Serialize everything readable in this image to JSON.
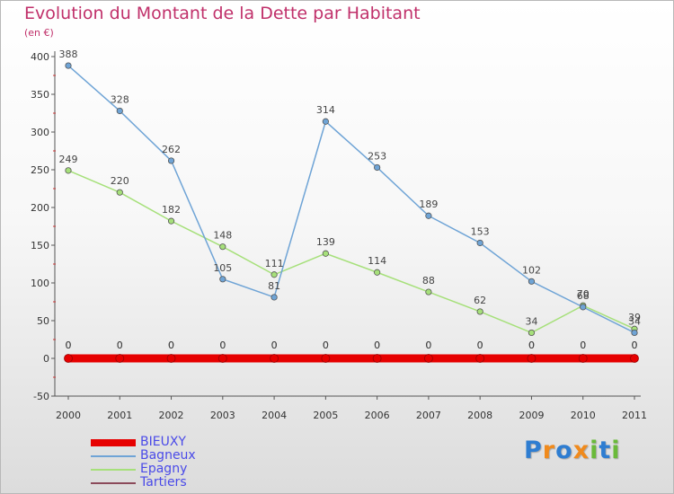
{
  "title": "Evolution du Montant de la Dette par Habitant",
  "subtitle": "(en €)",
  "chart_data": {
    "type": "line",
    "title": "Evolution du Montant de la Dette par Habitant",
    "ylabel": "(en €)",
    "xlabel": "",
    "x": [
      "2000",
      "2001",
      "2002",
      "2003",
      "2004",
      "2005",
      "2006",
      "2007",
      "2008",
      "2009",
      "2010",
      "2011"
    ],
    "ylim": [
      -50,
      400
    ],
    "yticks": [
      "-50",
      "0",
      "50",
      "100",
      "150",
      "200",
      "250",
      "300",
      "350",
      "400"
    ],
    "legend_position": "bottom-left",
    "series": [
      {
        "name": "BIEUXY",
        "color": "#e60000",
        "values": [
          0,
          0,
          0,
          0,
          0,
          0,
          0,
          0,
          0,
          0,
          0,
          0
        ],
        "labels": [
          "0",
          "0",
          "0",
          "0",
          "0",
          "0",
          "0",
          "0",
          "0",
          "0",
          "0",
          "0"
        ]
      },
      {
        "name": "Bagneux",
        "color": "#6fa4d6",
        "values": [
          388,
          328,
          262,
          105,
          81,
          314,
          253,
          189,
          153,
          102,
          68,
          34
        ],
        "labels": [
          "388",
          "328",
          "262",
          "105",
          "81",
          "314",
          "253",
          "189",
          "153",
          "102",
          "68",
          "34"
        ]
      },
      {
        "name": "Epagny",
        "color": "#a6e07a",
        "values": [
          249,
          220,
          182,
          148,
          111,
          139,
          114,
          88,
          62,
          34,
          70,
          39
        ],
        "labels": [
          "249",
          "220",
          "182",
          "148",
          "111",
          "139",
          "114",
          "88",
          "62",
          "34",
          "70",
          "39"
        ]
      },
      {
        "name": "Tartiers",
        "color": "#8b4a5a",
        "values": [
          0,
          0,
          0,
          0,
          0,
          0,
          0,
          0,
          0,
          0,
          0,
          0
        ],
        "labels": [
          "0",
          "0",
          "0",
          "0",
          "0",
          "0",
          "0",
          "0",
          "0",
          "0",
          "0",
          "0"
        ]
      }
    ]
  },
  "legend": [
    {
      "label": "BIEUXY",
      "color": "#e60000"
    },
    {
      "label": "Bagneux",
      "color": "#6fa4d6"
    },
    {
      "label": "Epagny",
      "color": "#a6e07a"
    },
    {
      "label": "Tartiers",
      "color": "#8b4a5a"
    }
  ],
  "logo": {
    "text": "Proxiti",
    "letters": [
      "P",
      "r",
      "o",
      "x",
      "i",
      "t",
      "i"
    ],
    "colors": [
      "#2e7dd1",
      "#f08a1c",
      "#2e7dd1",
      "#f08a1c",
      "#6aba3a",
      "#2e7dd1",
      "#6aba3a"
    ]
  }
}
